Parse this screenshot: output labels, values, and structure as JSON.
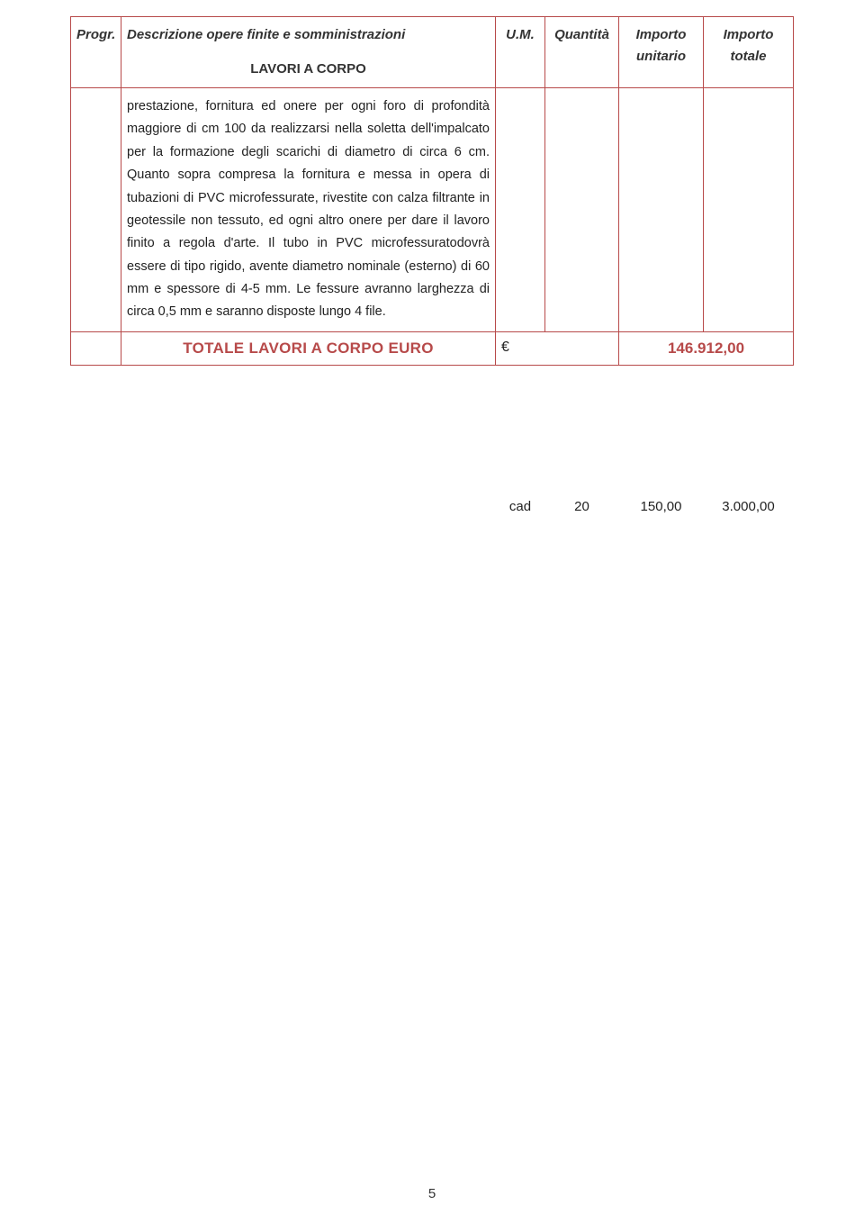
{
  "header": {
    "progr": "Progr.",
    "desc_line1": "Descrizione opere finite e somministrazioni",
    "desc_line2": "LAVORI A CORPO",
    "um": "U.M.",
    "qty": "Quantità",
    "unit_line1": "Importo",
    "unit_line2": "unitario",
    "tot_line1": "Importo",
    "tot_line2": "totale"
  },
  "row": {
    "description": "prestazione, fornitura ed onere per ogni foro di profondità maggiore di cm 100 da realizzarsi nella soletta dell'impalcato per la formazione degli scarichi di diametro di circa 6 cm. Quanto sopra compresa la fornitura e messa  in opera di tubazioni di PVC microfessurate, rivestite con calza filtrante in geotessile non tessuto, ed ogni altro onere per dare il lavoro finito a regola d'arte. Il tubo in PVC microfessuratodovrà essere di tipo rigido, avente diametro nominale (esterno) di 60 mm e spessore di 4-5 mm. Le fessure avranno larghezza di circa 0,5 mm e saranno disposte lungo 4 file.",
    "um": "cad",
    "qty": "20",
    "unit": "150,00",
    "tot": "3.000,00"
  },
  "total": {
    "label": "TOTALE LAVORI A CORPO EURO",
    "currency": "€",
    "value": "146.912,00"
  },
  "page_number": "5",
  "colors": {
    "border": "#b74a4a",
    "accent_text": "#b74a4a",
    "body_text": "#222222",
    "background": "#ffffff"
  }
}
